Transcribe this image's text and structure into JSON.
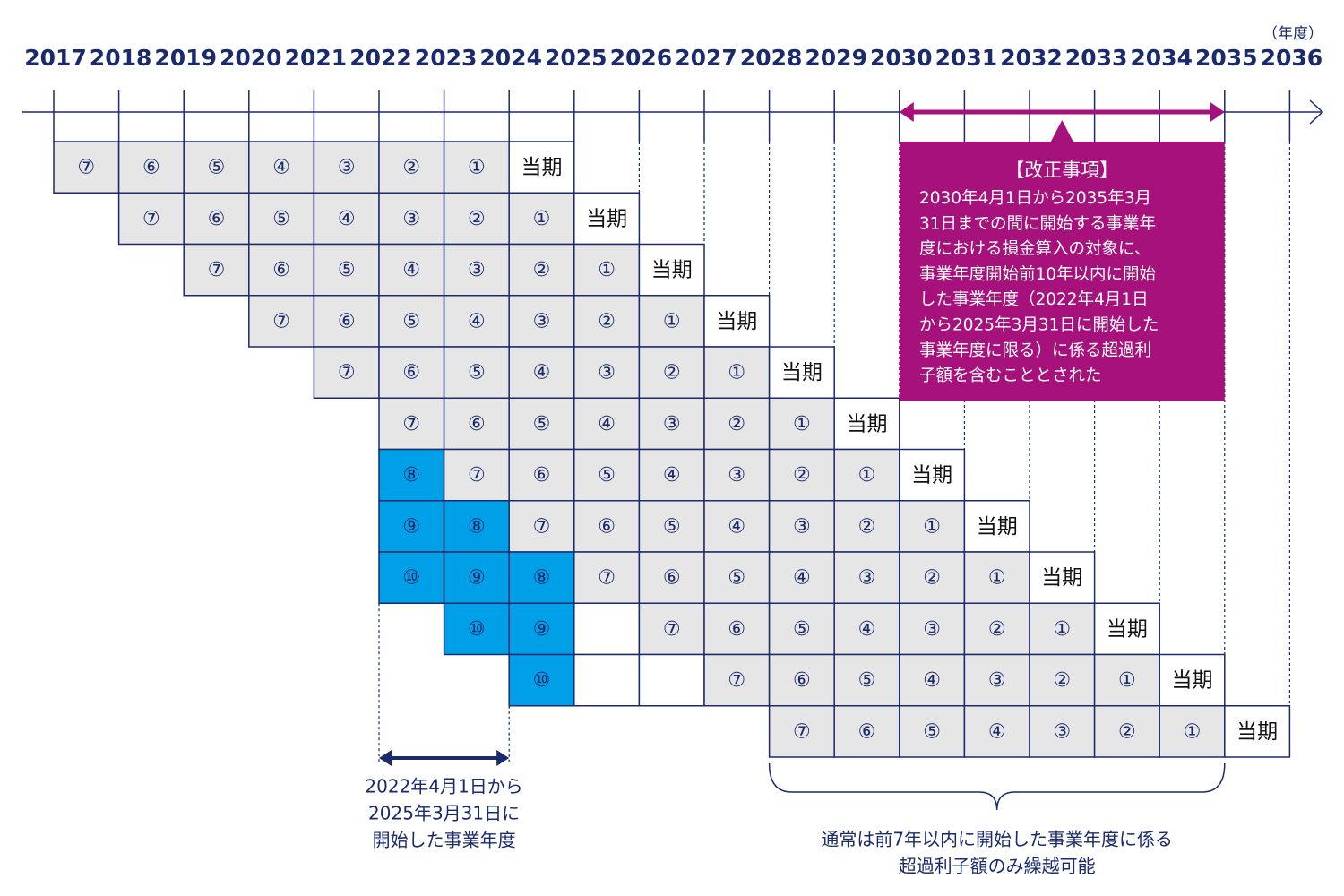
{
  "unit": "（年度）",
  "years": [
    "2017",
    "2018",
    "2019",
    "2020",
    "2021",
    "2022",
    "2023",
    "2024",
    "2025",
    "2026",
    "2027",
    "2028",
    "2029",
    "2030",
    "2031",
    "2032",
    "2033",
    "2034",
    "2035",
    "2036"
  ],
  "rows": [
    [
      "⑦",
      "⑥",
      "⑤",
      "④",
      "③",
      "②",
      "①",
      "当期"
    ],
    [
      "⑦",
      "⑥",
      "⑤",
      "④",
      "③",
      "②",
      "①",
      "当期"
    ],
    [
      "⑦",
      "⑥",
      "⑤",
      "④",
      "③",
      "②",
      "①",
      "当期"
    ],
    [
      "⑦",
      "⑥",
      "⑤",
      "④",
      "③",
      "②",
      "①",
      "当期"
    ],
    [
      "⑦",
      "⑥",
      "⑤",
      "④",
      "③",
      "②",
      "①",
      "当期"
    ],
    [
      "⑦",
      "⑥",
      "⑤",
      "④",
      "③",
      "②",
      "①",
      "当期"
    ],
    [
      "⑧",
      "⑦",
      "⑥",
      "⑤",
      "④",
      "③",
      "②",
      "①",
      "当期"
    ],
    [
      "⑨",
      "⑧",
      "⑦",
      "⑥",
      "⑤",
      "④",
      "③",
      "②",
      "①",
      "当期"
    ],
    [
      "⑩",
      "⑨",
      "⑧",
      "⑦",
      "⑥",
      "⑤",
      "④",
      "③",
      "②",
      "①",
      "当期"
    ],
    [
      "⑩",
      "⑨",
      null,
      "⑦",
      "⑥",
      "⑤",
      "④",
      "③",
      "②",
      "①",
      "当期"
    ],
    [
      "⑩",
      null,
      null,
      "⑦",
      "⑥",
      "⑤",
      "④",
      "③",
      "②",
      "①",
      "当期"
    ],
    [
      "⑦",
      "⑥",
      "⑤",
      "④",
      "③",
      "②",
      "①",
      "当期"
    ]
  ],
  "amendment": {
    "title": "【改正事項】",
    "lines": [
      "2030年4月1日から2035年3月",
      "31日までの間に開始する事業年",
      "度における損金算入の対象に、",
      "事業年度開始前10年以内に開始",
      "した事業年度（2022年4月1日",
      "から2025年3月31日に開始した",
      "事業年度に限る）に係る超過利",
      "子額を含むこととされた"
    ]
  },
  "left_note": [
    "2022年4月1日から",
    "2025年3月31日に",
    "開始した事業年度"
  ],
  "right_note": [
    "通常は前7年以内に開始した事業年度に係る",
    "超過利子額のみ繰越可能"
  ]
}
